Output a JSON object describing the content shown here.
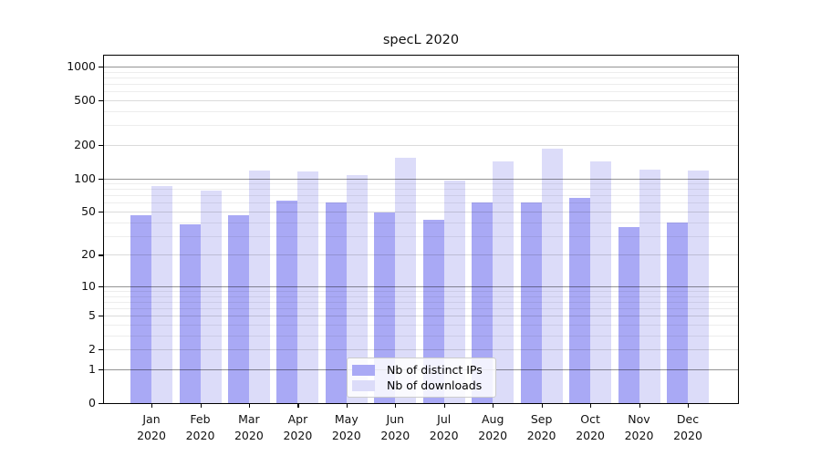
{
  "title": "specL 2020",
  "legend": {
    "items": [
      {
        "label": "Nb of distinct IPs",
        "color": "#a9a9f5"
      },
      {
        "label": "Nb of downloads",
        "color": "#dcdcf9"
      }
    ]
  },
  "chart_data": {
    "type": "bar",
    "title": "specL 2020",
    "categories": [
      "Jan",
      "Feb",
      "Mar",
      "Apr",
      "May",
      "Jun",
      "Jul",
      "Aug",
      "Sep",
      "Oct",
      "Nov",
      "Dec"
    ],
    "x_tick_year": "2020",
    "series": [
      {
        "name": "Nb of distinct IPs",
        "color": "#a9a9f5",
        "values": [
          46,
          38,
          46,
          63,
          60,
          49,
          42,
          60,
          61,
          66,
          36,
          40
        ]
      },
      {
        "name": "Nb of downloads",
        "color": "#dcdcf9",
        "values": [
          85,
          78,
          118,
          116,
          107,
          152,
          95,
          142,
          185,
          142,
          120,
          117
        ]
      }
    ],
    "yscale": "log1p",
    "ylim": [
      0,
      1200
    ],
    "yticks": [
      0,
      1,
      2,
      5,
      10,
      20,
      50,
      100,
      200,
      500,
      1000
    ],
    "ytick_labels": [
      "0",
      "1",
      "2",
      "5",
      "10",
      "20",
      "50",
      "100",
      "200",
      "500",
      "1000"
    ],
    "minor_yticks": [
      3,
      4,
      6,
      7,
      8,
      9,
      30,
      40,
      60,
      70,
      80,
      90,
      300,
      400,
      600,
      700,
      800,
      900
    ],
    "power_ticks": [
      1,
      10,
      100,
      1000
    ],
    "grid": true,
    "legend_position": "lower center"
  }
}
